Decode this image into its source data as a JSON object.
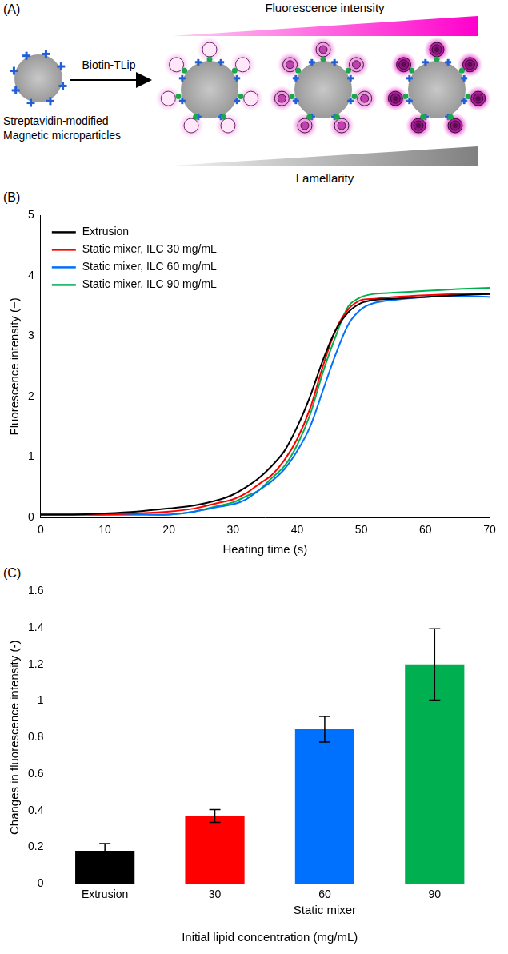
{
  "diagram": {
    "panel_label": "(A)",
    "top_scale_label": "Fluorescence intensity",
    "reagent": "Biotin-TLip",
    "particle_label": [
      "Streptavidin-modified",
      "Magnetic microparticles"
    ],
    "bottom_scale_label": "Lamellarity"
  },
  "chart_data": [
    {
      "panel_label": "(B)",
      "type": "line",
      "xlabel": "Heating time (s)",
      "ylabel": "Fluorescence intensity (−)",
      "x": [
        0,
        5,
        10,
        15,
        20,
        24,
        28,
        30,
        32,
        34,
        36,
        38,
        40,
        42,
        44,
        46,
        48,
        50,
        52,
        55,
        60,
        65,
        70
      ],
      "series": [
        {
          "name": "Extrusion",
          "color": "#000000",
          "values": [
            0.05,
            0.05,
            0.07,
            0.1,
            0.15,
            0.2,
            0.3,
            0.38,
            0.5,
            0.65,
            0.85,
            1.1,
            1.5,
            2.0,
            2.6,
            3.1,
            3.4,
            3.55,
            3.6,
            3.62,
            3.65,
            3.68,
            3.7
          ]
        },
        {
          "name": "Static mixer, ILC 30 mg/mL",
          "color": "#ff0000",
          "values": [
            0.05,
            0.05,
            0.05,
            0.07,
            0.1,
            0.15,
            0.25,
            0.3,
            0.4,
            0.55,
            0.7,
            0.95,
            1.3,
            1.8,
            2.5,
            3.1,
            3.45,
            3.6,
            3.62,
            3.65,
            3.68,
            3.7,
            3.7
          ]
        },
        {
          "name": "Static mixer, ILC 60 mg/mL",
          "color": "#0070ff",
          "values": [
            0.05,
            0.05,
            0.05,
            0.05,
            0.05,
            0.1,
            0.18,
            0.22,
            0.3,
            0.45,
            0.6,
            0.8,
            1.1,
            1.5,
            2.1,
            2.7,
            3.2,
            3.45,
            3.55,
            3.6,
            3.65,
            3.67,
            3.65
          ]
        },
        {
          "name": "Static mixer, ILC 90 mg/mL",
          "color": "#00b050",
          "values": [
            0.05,
            0.05,
            0.05,
            0.05,
            0.05,
            0.1,
            0.2,
            0.25,
            0.35,
            0.45,
            0.65,
            0.85,
            1.2,
            1.7,
            2.4,
            3.0,
            3.5,
            3.65,
            3.7,
            3.72,
            3.75,
            3.78,
            3.8
          ]
        }
      ],
      "xlim": [
        0,
        70
      ],
      "xticks": [
        0,
        10,
        20,
        30,
        40,
        50,
        60,
        70
      ],
      "ylim": [
        0,
        5
      ],
      "yticks": [
        0,
        1,
        2,
        3,
        4,
        5
      ],
      "grid": false,
      "legend": "upper left",
      "line_style": "solid"
    },
    {
      "panel_label": "(C)",
      "type": "bar",
      "xlabel": "Initial lipid concentration (mg/mL)",
      "ylabel": "Changes in fluorescence intensity (-)",
      "categories": [
        "Extrusion",
        "30",
        "60",
        "90"
      ],
      "values": [
        0.18,
        0.37,
        0.845,
        1.2
      ],
      "errors": [
        0.04,
        0.035,
        0.07,
        0.195
      ],
      "colors": [
        "#000000",
        "#ff0000",
        "#0070ff",
        "#00b050"
      ],
      "group": {
        "label": "Static mixer",
        "members": [
          "30",
          "60",
          "90"
        ]
      },
      "ylim": [
        0,
        1.6
      ],
      "yticks": [
        0,
        0.2,
        0.4,
        0.6,
        0.8,
        1,
        1.2,
        1.4,
        1.6
      ],
      "grid": false
    }
  ]
}
